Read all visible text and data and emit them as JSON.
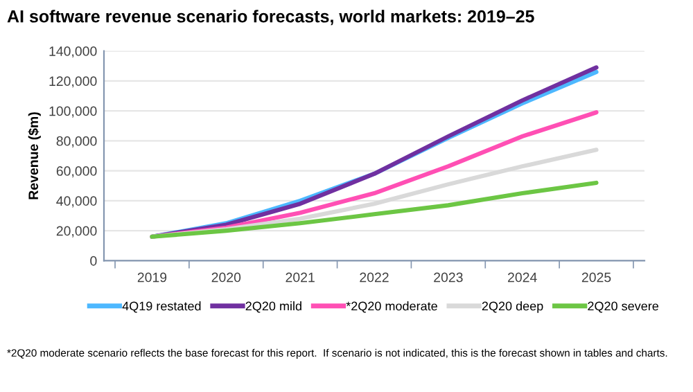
{
  "chart_data": {
    "type": "line",
    "title": "AI software revenue scenario forecasts, world markets: 2019–25",
    "ylabel": "Revenue ($m)",
    "categories": [
      "2019",
      "2020",
      "2021",
      "2022",
      "2023",
      "2024",
      "2025"
    ],
    "series": [
      {
        "name": "4Q19 restated",
        "color": "#4db8ff",
        "values": [
          16000,
          25000,
          40000,
          58000,
          82000,
          105000,
          126000
        ]
      },
      {
        "name": "2Q20 mild",
        "color": "#7030a0",
        "values": [
          16000,
          24000,
          38000,
          58000,
          83000,
          107000,
          129000
        ]
      },
      {
        "name": "*2Q20 moderate",
        "color": "#ff4fb4",
        "values": [
          16000,
          22000,
          32000,
          45000,
          63000,
          83000,
          99000
        ]
      },
      {
        "name": "2Q20 deep",
        "color": "#d9d9d9",
        "values": [
          16000,
          21000,
          28000,
          38000,
          51000,
          63000,
          74000
        ]
      },
      {
        "name": "2Q20 severe",
        "color": "#6cc644",
        "values": [
          16000,
          20000,
          25000,
          31000,
          37000,
          45000,
          52000
        ]
      }
    ],
    "ylim": [
      0,
      140000
    ],
    "yticks": [
      {
        "value": 0,
        "label": "0"
      },
      {
        "value": 20000,
        "label": "20,000"
      },
      {
        "value": 40000,
        "label": "40,000"
      },
      {
        "value": 60000,
        "label": "60,000"
      },
      {
        "value": 80000,
        "label": "80,000"
      },
      {
        "value": 100000,
        "label": "100,000"
      },
      {
        "value": 120000,
        "label": "120,000"
      },
      {
        "value": 140000,
        "label": "140,000"
      }
    ],
    "grid": "y",
    "legend": "bottom",
    "marker": "none",
    "line_style": "solid",
    "annotations": [
      "*2Q20 moderate scenario reflects the base forecast for this report.  If scenario is not indicated, this is the forecast shown in tables and charts."
    ]
  }
}
